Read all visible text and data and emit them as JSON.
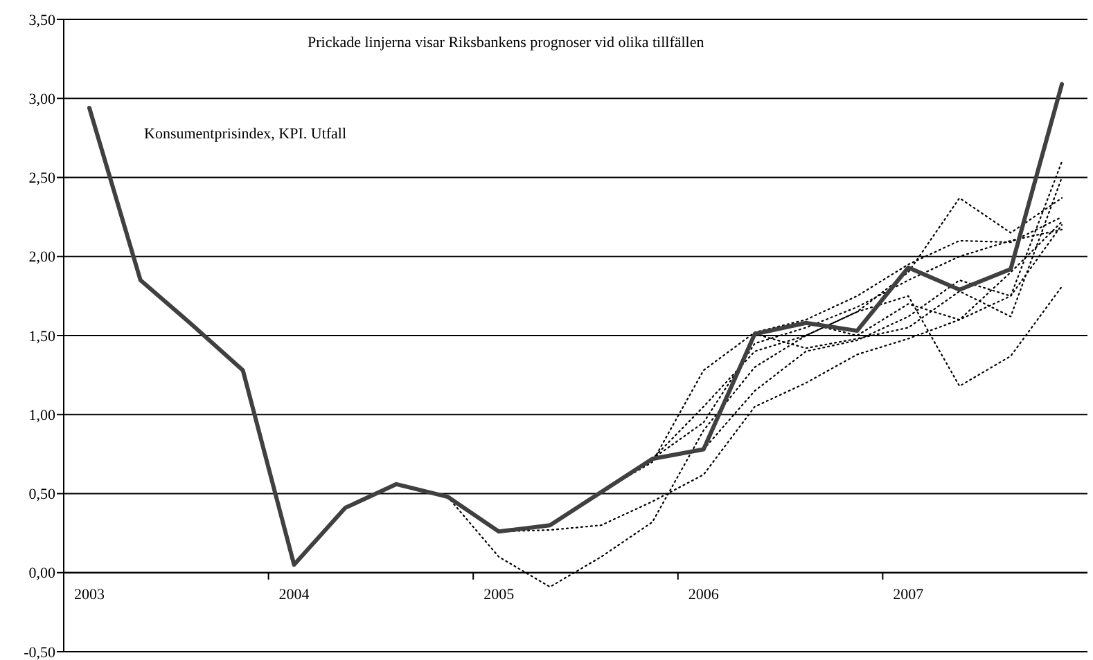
{
  "chart_data": {
    "type": "line",
    "categories": [
      "2003",
      null,
      null,
      null,
      "2004",
      null,
      null,
      null,
      "2005",
      null,
      null,
      null,
      "2006",
      null,
      null,
      null,
      "2007",
      null,
      null,
      null
    ],
    "series": [
      {
        "color": "#000000",
        "line_style": "dotted",
        "values": [
          null,
          null,
          null,
          null,
          null,
          null,
          null,
          0.48,
          0.1,
          -0.09,
          0.1,
          0.32,
          0.9,
          1.3,
          1.5,
          1.65,
          1.75,
          1.18,
          1.37,
          1.81
        ]
      },
      {
        "color": "#000000",
        "line_style": "dotted",
        "values": [
          null,
          null,
          null,
          null,
          null,
          null,
          null,
          null,
          0.26,
          0.27,
          0.3,
          0.45,
          0.62,
          1.05,
          1.2,
          1.38,
          1.48,
          1.6,
          1.75,
          2.2
        ]
      },
      {
        "color": "#000000",
        "line_style": "dotted",
        "values": [
          null,
          null,
          null,
          null,
          null,
          null,
          null,
          null,
          null,
          0.3,
          0.5,
          0.72,
          1.05,
          1.4,
          1.5,
          1.65,
          1.9,
          2.37,
          2.15,
          2.37
        ]
      },
      {
        "color": "#000000",
        "line_style": "dotted",
        "values": [
          null,
          null,
          null,
          null,
          null,
          null,
          null,
          null,
          null,
          null,
          0.51,
          0.7,
          1.28,
          1.52,
          1.6,
          1.75,
          1.95,
          2.1,
          2.09,
          2.25
        ]
      },
      {
        "color": "#000000",
        "line_style": "dotted",
        "values": [
          null,
          null,
          null,
          null,
          null,
          null,
          null,
          null,
          null,
          null,
          null,
          0.72,
          0.95,
          1.45,
          1.55,
          1.68,
          1.85,
          2.0,
          2.1,
          2.17
        ]
      },
      {
        "color": "#000000",
        "line_style": "dotted",
        "values": [
          null,
          null,
          null,
          null,
          null,
          null,
          null,
          null,
          null,
          null,
          null,
          null,
          0.78,
          1.15,
          1.4,
          1.47,
          1.62,
          1.85,
          1.75,
          2.6
        ]
      },
      {
        "color": "#000000",
        "line_style": "dotted",
        "values": [
          null,
          null,
          null,
          null,
          null,
          null,
          null,
          null,
          null,
          null,
          null,
          null,
          null,
          1.51,
          1.42,
          1.48,
          1.55,
          1.78,
          1.62,
          2.5
        ]
      },
      {
        "color": "#000000",
        "line_style": "dotted",
        "values": [
          null,
          null,
          null,
          null,
          null,
          null,
          null,
          null,
          null,
          null,
          null,
          null,
          null,
          null,
          1.58,
          1.5,
          1.7,
          1.6,
          1.9,
          2.22
        ]
      },
      {
        "color": "#404040",
        "line_style": "solid",
        "values": [
          2.94,
          1.85,
          1.57,
          1.28,
          0.05,
          0.41,
          0.56,
          0.48,
          0.26,
          0.3,
          0.51,
          0.72,
          0.78,
          1.51,
          1.58,
          1.53,
          1.93,
          1.79,
          1.92,
          3.09
        ]
      }
    ],
    "ylim": [
      -0.5,
      3.5
    ],
    "yticks": [
      {
        "value": -0.5,
        "label": "-0,50"
      },
      {
        "value": 0,
        "label": "0,00"
      },
      {
        "value": 0.5,
        "label": "0,50"
      },
      {
        "value": 1,
        "label": "1,00"
      },
      {
        "value": 1.5,
        "label": "1,50"
      },
      {
        "value": 2,
        "label": "2,00"
      },
      {
        "value": 2.5,
        "label": "2,50"
      },
      {
        "value": 3,
        "label": "3,00"
      },
      {
        "value": 3.5,
        "label": "3,50"
      }
    ],
    "grid": "y",
    "marker": "none",
    "annotations": [
      "Prickade linjerna visar  Riksbankens prognoser vid olika tillfällen",
      "Konsumentprisindex, KPI. Utfall"
    ]
  }
}
